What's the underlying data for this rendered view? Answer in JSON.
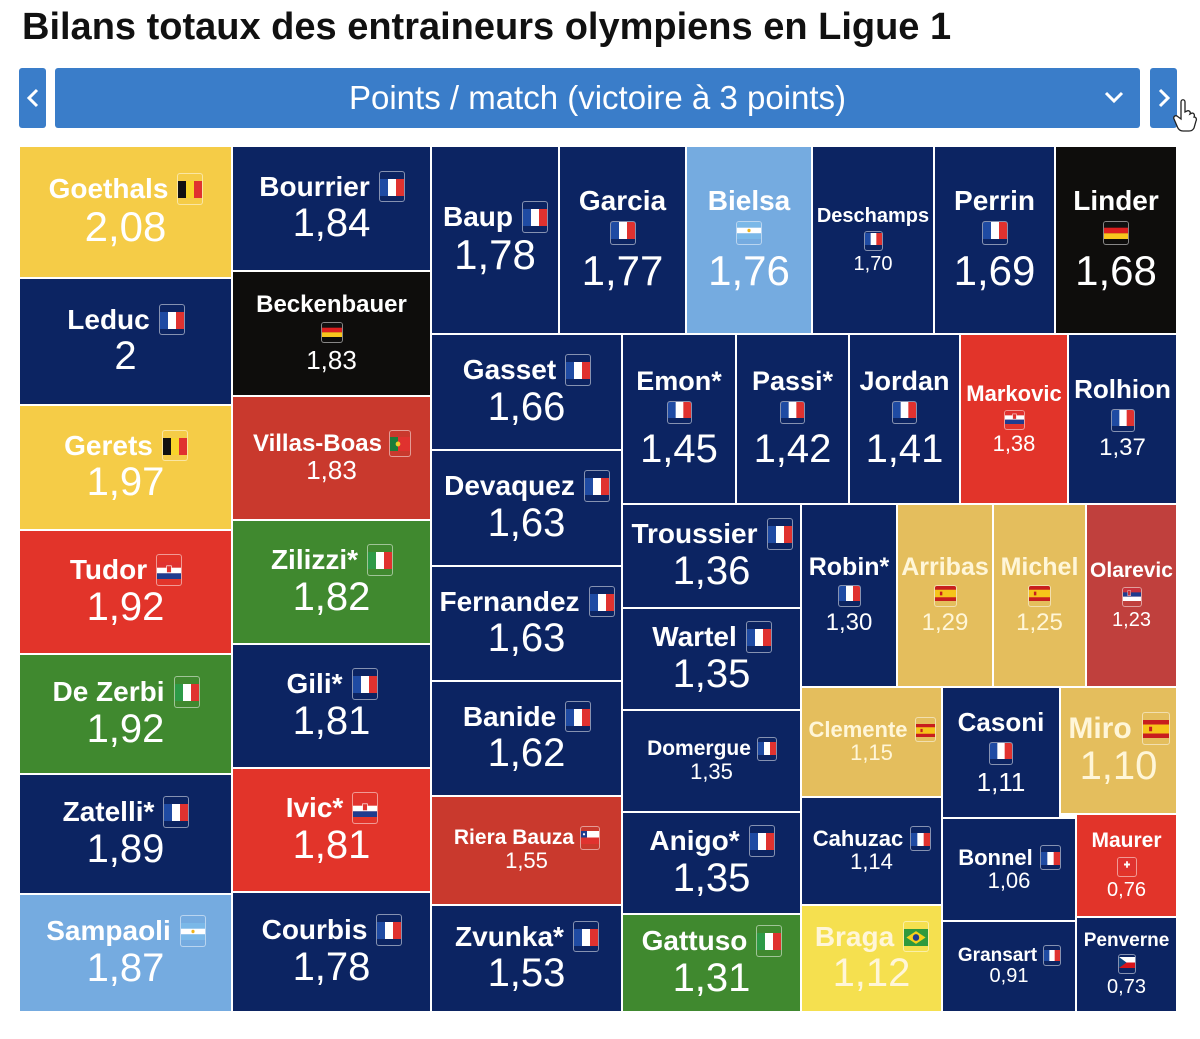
{
  "title": "Bilans totaux des entraineurs olympiens en Ligue 1",
  "selector": {
    "label": "Points / match (victoire à 3 points)"
  },
  "colors": {
    "FR": "#0c2462",
    "BE": "#f5cc47",
    "IT": "#40892f",
    "HR": "#e2342a",
    "AR": "#75abe0",
    "DE": "#0e0d0c",
    "PT": "#c9392d",
    "CL": "#c9392d",
    "ES": "#e4be5d",
    "BR": "#f5e04f",
    "CH": "#e2342a",
    "RS": "#c0403d",
    "CZ": "#0c2462"
  },
  "chart_data": {
    "type": "treemap",
    "title": "Bilans totaux des entraineurs olympiens en Ligue 1",
    "metric": "Points / match (victoire à 3 points)",
    "items": [
      {
        "name": "Goethals",
        "country": "BE",
        "value": "2,08"
      },
      {
        "name": "Leduc",
        "country": "FR",
        "value": "2"
      },
      {
        "name": "Gerets",
        "country": "BE",
        "value": "1,97"
      },
      {
        "name": "Tudor",
        "country": "HR",
        "value": "1,92"
      },
      {
        "name": "De Zerbi",
        "country": "IT",
        "value": "1,92"
      },
      {
        "name": "Zatelli*",
        "country": "FR",
        "value": "1,89"
      },
      {
        "name": "Sampaoli",
        "country": "AR",
        "value": "1,87"
      },
      {
        "name": "Bourrier",
        "country": "FR",
        "value": "1,84"
      },
      {
        "name": "Beckenbauer",
        "country": "DE",
        "value": "1,83"
      },
      {
        "name": "Villas-Boas",
        "country": "PT",
        "value": "1,83"
      },
      {
        "name": "Zilizzi*",
        "country": "IT",
        "value": "1,82"
      },
      {
        "name": "Gili*",
        "country": "FR",
        "value": "1,81"
      },
      {
        "name": "Ivic*",
        "country": "HR",
        "value": "1,81"
      },
      {
        "name": "Courbis",
        "country": "FR",
        "value": "1,78"
      },
      {
        "name": "Baup",
        "country": "FR",
        "value": "1,78"
      },
      {
        "name": "Garcia",
        "country": "FR",
        "value": "1,77"
      },
      {
        "name": "Bielsa",
        "country": "AR",
        "value": "1,76"
      },
      {
        "name": "Deschamps",
        "country": "FR",
        "value": "1,70"
      },
      {
        "name": "Perrin",
        "country": "FR",
        "value": "1,69"
      },
      {
        "name": "Linder",
        "country": "DE",
        "value": "1,68"
      },
      {
        "name": "Gasset",
        "country": "FR",
        "value": "1,66"
      },
      {
        "name": "Devaquez",
        "country": "FR",
        "value": "1,63"
      },
      {
        "name": "Fernandez",
        "country": "FR",
        "value": "1,63"
      },
      {
        "name": "Banide",
        "country": "FR",
        "value": "1,62"
      },
      {
        "name": "Riera Bauza",
        "country": "CL",
        "value": "1,55"
      },
      {
        "name": "Zvunka*",
        "country": "FR",
        "value": "1,53"
      },
      {
        "name": "Emon*",
        "country": "FR",
        "value": "1,45"
      },
      {
        "name": "Passi*",
        "country": "FR",
        "value": "1,42"
      },
      {
        "name": "Jordan",
        "country": "FR",
        "value": "1,41"
      },
      {
        "name": "Markovic",
        "country": "HR",
        "value": "1,38"
      },
      {
        "name": "Rolhion",
        "country": "FR",
        "value": "1,37"
      },
      {
        "name": "Troussier",
        "country": "FR",
        "value": "1,36"
      },
      {
        "name": "Wartel",
        "country": "FR",
        "value": "1,35"
      },
      {
        "name": "Domergue",
        "country": "FR",
        "value": "1,35"
      },
      {
        "name": "Anigo*",
        "country": "FR",
        "value": "1,35"
      },
      {
        "name": "Gattuso",
        "country": "IT",
        "value": "1,31"
      },
      {
        "name": "Robin*",
        "country": "FR",
        "value": "1,30"
      },
      {
        "name": "Arribas",
        "country": "ES",
        "value": "1,29"
      },
      {
        "name": "Michel",
        "country": "ES",
        "value": "1,25"
      },
      {
        "name": "Olarevic",
        "country": "RS",
        "value": "1,23"
      },
      {
        "name": "Clemente",
        "country": "ES",
        "value": "1,15"
      },
      {
        "name": "Casoni",
        "country": "FR",
        "value": "1,11"
      },
      {
        "name": "Miro",
        "country": "ES",
        "value": "1,10"
      },
      {
        "name": "Cahuzac",
        "country": "FR",
        "value": "1,14"
      },
      {
        "name": "Braga",
        "country": "BR",
        "value": "1,12"
      },
      {
        "name": "Bonnel",
        "country": "FR",
        "value": "1,06"
      },
      {
        "name": "Gransart",
        "country": "FR",
        "value": "0,91"
      },
      {
        "name": "Maurer",
        "country": "CH",
        "value": "0,76"
      },
      {
        "name": "Penverne",
        "country": "CZ",
        "value": "0,73"
      }
    ]
  }
}
